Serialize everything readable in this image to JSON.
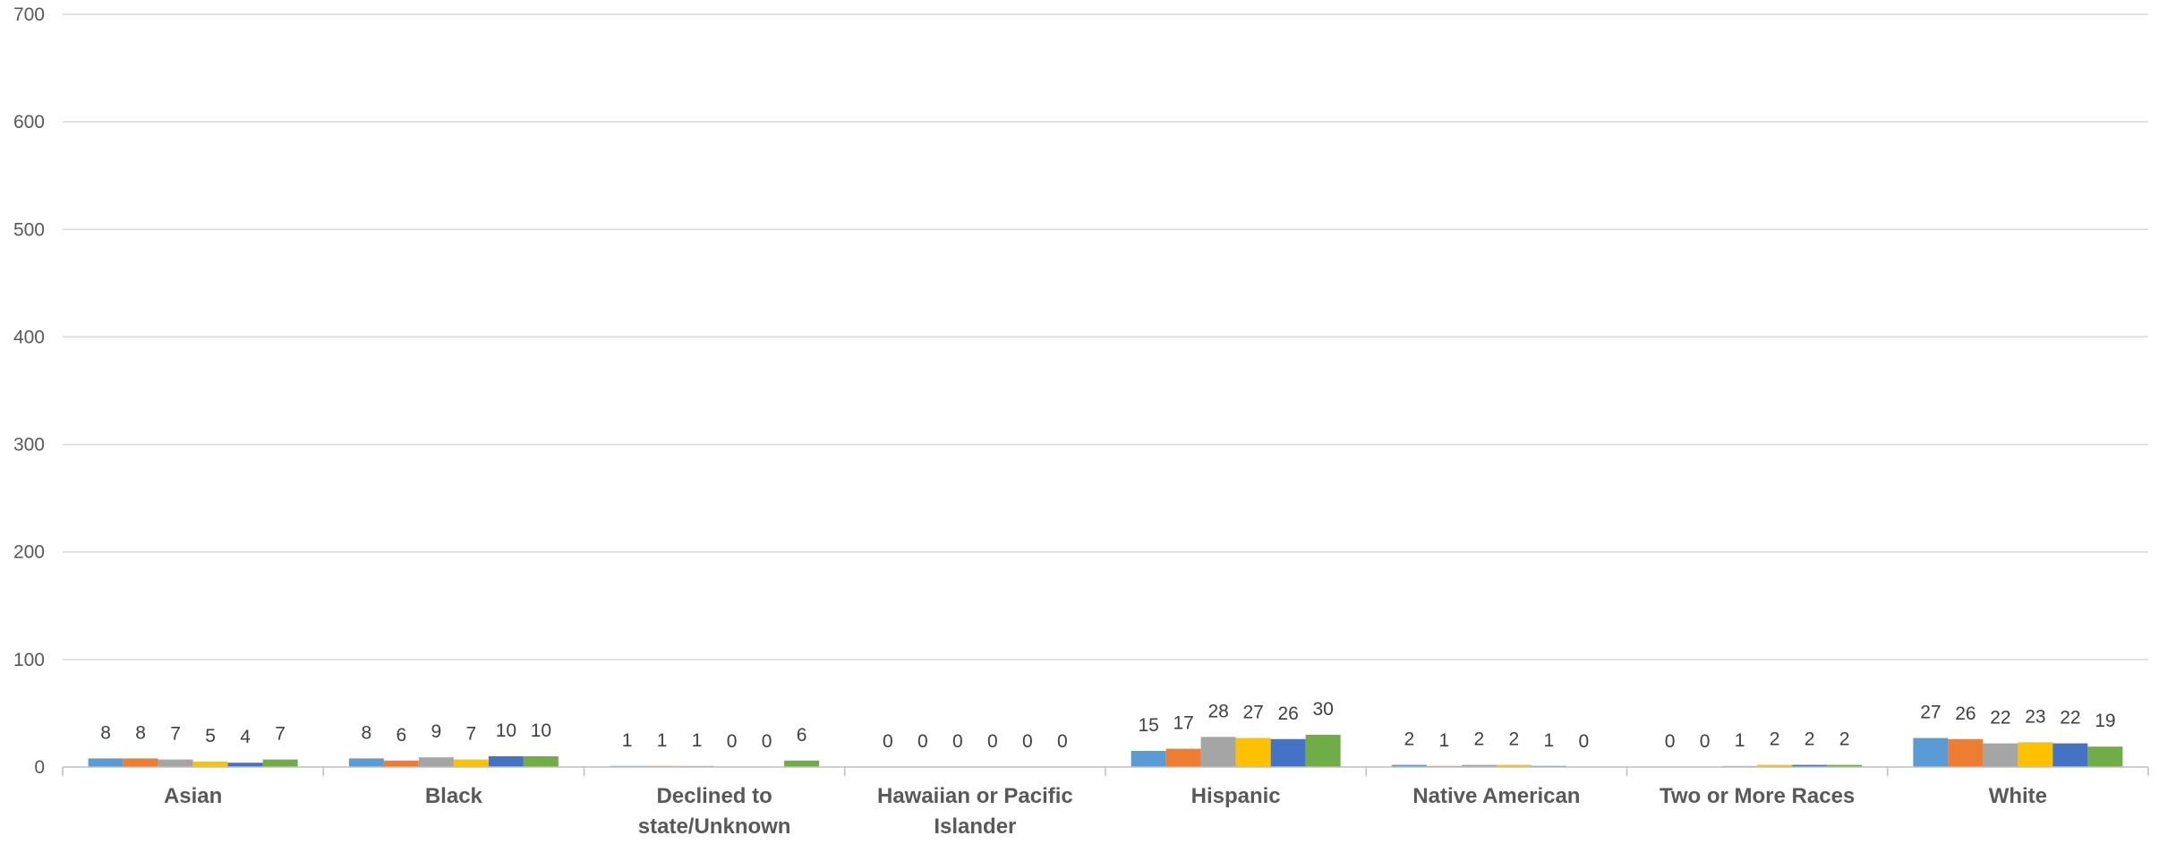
{
  "chart_data": {
    "type": "bar",
    "categories": [
      [
        "Asian"
      ],
      [
        "Black"
      ],
      [
        "Declined to",
        "state/Unknown"
      ],
      [
        "Hawaiian or Pacific",
        "Islander"
      ],
      [
        "Hispanic"
      ],
      [
        "Native American"
      ],
      [
        "Two or More Races"
      ],
      [
        "White"
      ]
    ],
    "series": [
      {
        "color": "#5b9bd5",
        "values": [
          8,
          8,
          1,
          0,
          15,
          2,
          0,
          27
        ]
      },
      {
        "color": "#ed7d31",
        "values": [
          8,
          6,
          1,
          0,
          17,
          1,
          0,
          26
        ]
      },
      {
        "color": "#a5a5a5",
        "values": [
          7,
          9,
          1,
          0,
          28,
          2,
          1,
          22
        ]
      },
      {
        "color": "#ffc000",
        "values": [
          5,
          7,
          0,
          0,
          27,
          2,
          2,
          23
        ]
      },
      {
        "color": "#4472c4",
        "values": [
          4,
          10,
          0,
          0,
          26,
          1,
          2,
          22
        ]
      },
      {
        "color": "#70ad47",
        "values": [
          7,
          10,
          6,
          0,
          30,
          0,
          2,
          19
        ]
      }
    ],
    "ylim": [
      0,
      700
    ],
    "yticks": [
      0,
      100,
      200,
      300,
      400,
      500,
      600,
      700
    ],
    "grid": true,
    "legend": "none"
  }
}
